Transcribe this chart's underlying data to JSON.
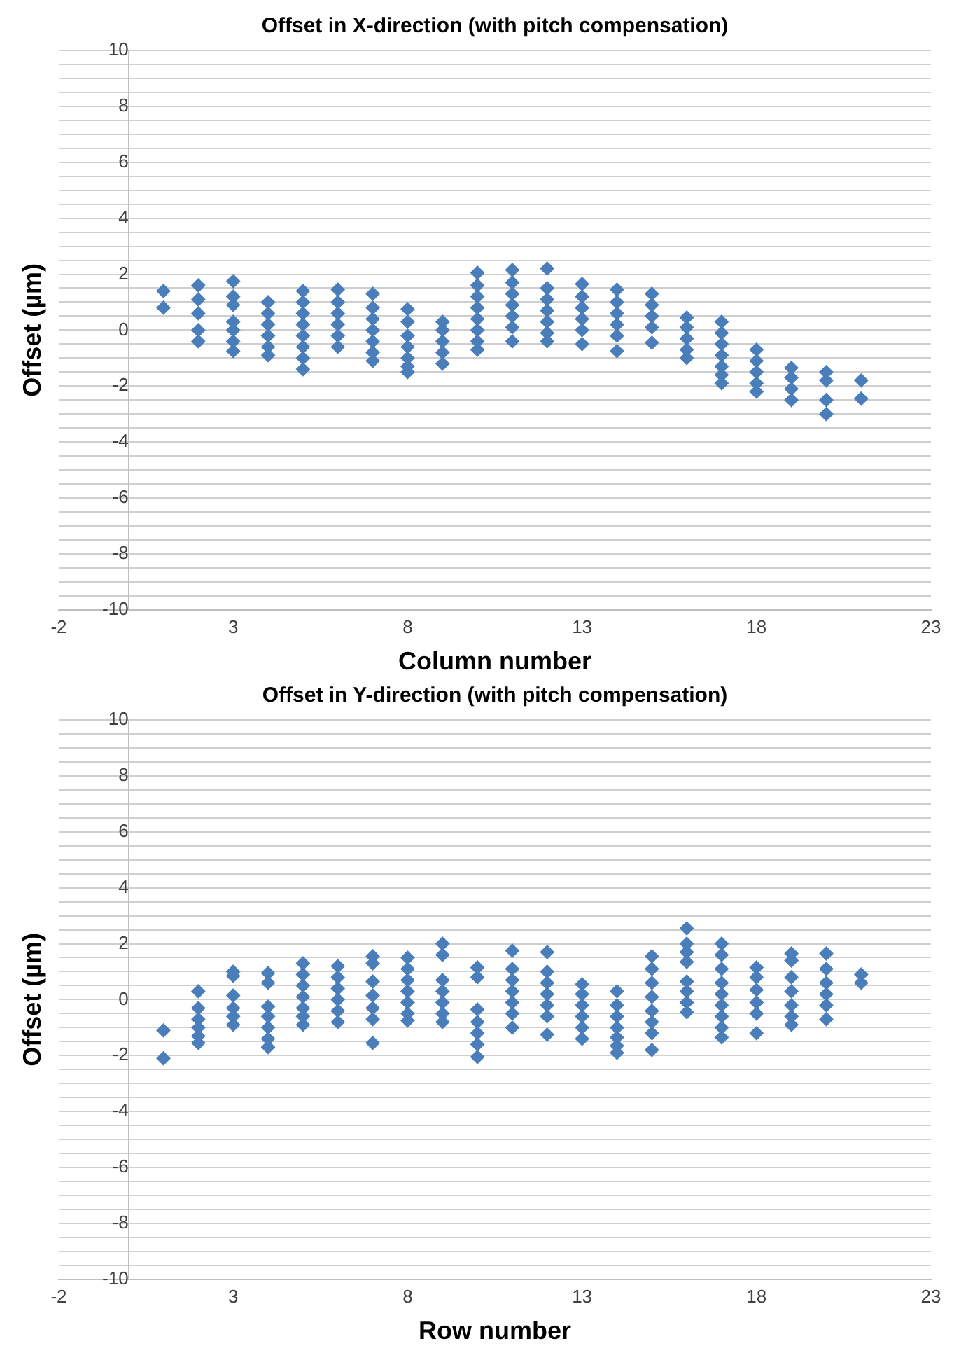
{
  "chart_data": [
    {
      "type": "scatter",
      "title": "Offset in X-direction (with pitch compensation)",
      "xlabel": "Column number",
      "ylabel": "Offset (µm)",
      "marker": "diamond",
      "grid": "y",
      "xlim": [
        -2,
        23
      ],
      "ylim": [
        -10,
        10
      ],
      "xticks": [
        -2,
        3,
        8,
        13,
        18,
        23
      ],
      "yticks": [
        -10,
        {
          "value": -9.5,
          "label": null
        },
        {
          "value": -9,
          "label": null
        },
        {
          "value": -8.5,
          "label": null
        },
        -8,
        {
          "value": -7.5,
          "label": null
        },
        {
          "value": -7,
          "label": null
        },
        {
          "value": -6.5,
          "label": null
        },
        -6,
        {
          "value": -5.5,
          "label": null
        },
        {
          "value": -5,
          "label": null
        },
        {
          "value": -4.5,
          "label": null
        },
        -4,
        {
          "value": -3.5,
          "label": null
        },
        {
          "value": -3,
          "label": null
        },
        {
          "value": -2.5,
          "label": null
        },
        -2,
        {
          "value": -1.5,
          "label": null
        },
        {
          "value": -1,
          "label": null
        },
        {
          "value": -0.5,
          "label": null
        },
        0,
        {
          "value": 0.5,
          "label": null
        },
        {
          "value": 1,
          "label": null
        },
        {
          "value": 1.5,
          "label": null
        },
        2,
        {
          "value": 2.5,
          "label": null
        },
        {
          "value": 3,
          "label": null
        },
        {
          "value": 3.5,
          "label": null
        },
        4,
        {
          "value": 4.5,
          "label": null
        },
        {
          "value": 5,
          "label": null
        },
        {
          "value": 5.5,
          "label": null
        },
        6,
        {
          "value": 6.5,
          "label": null
        },
        {
          "value": 7,
          "label": null
        },
        {
          "value": 7.5,
          "label": null
        },
        8,
        {
          "value": 8.5,
          "label": null
        },
        {
          "value": 9,
          "label": null
        },
        {
          "value": 9.5,
          "label": null
        },
        10
      ],
      "series": [
        {
          "color": "#4a7ebb",
          "x": [
            1,
            1,
            2,
            2,
            2,
            2,
            2,
            3,
            3,
            3,
            3,
            3,
            3,
            3,
            4,
            4,
            4,
            4,
            4,
            4,
            5,
            5,
            5,
            5,
            5,
            5,
            5,
            5,
            6,
            6,
            6,
            6,
            6,
            6,
            7,
            7,
            7,
            7,
            7,
            7,
            7,
            8,
            8,
            8,
            8,
            8,
            8,
            8,
            9,
            9,
            9,
            9,
            9,
            10,
            10,
            10,
            10,
            10,
            10,
            10,
            10,
            11,
            11,
            11,
            11,
            11,
            11,
            11,
            12,
            12,
            12,
            12,
            12,
            12,
            12,
            13,
            13,
            13,
            13,
            13,
            13,
            14,
            14,
            14,
            14,
            14,
            14,
            15,
            15,
            15,
            15,
            15,
            16,
            16,
            16,
            16,
            16,
            17,
            17,
            17,
            17,
            17,
            17,
            17,
            18,
            18,
            18,
            18,
            18,
            19,
            19,
            19,
            19,
            20,
            20,
            20,
            20,
            21,
            21
          ],
          "values": [
            1.4,
            0.8,
            1.6,
            1.1,
            0.6,
            0,
            -0.4,
            1.75,
            1.2,
            0.9,
            0.3,
            0,
            -0.4,
            -0.75,
            1,
            0.6,
            0.2,
            -0.2,
            -0.6,
            -0.9,
            1.4,
            1,
            0.6,
            0.2,
            -0.2,
            -0.6,
            -1,
            -1.4,
            1.45,
            1,
            0.6,
            0.2,
            -0.2,
            -0.6,
            1.3,
            0.8,
            0.4,
            0,
            -0.4,
            -0.8,
            -1.1,
            0.75,
            0.3,
            -0.2,
            -0.6,
            -1,
            -1.3,
            -1.5,
            0.3,
            0,
            -0.4,
            -0.8,
            -1.2,
            2.05,
            1.6,
            1.2,
            0.8,
            0.4,
            0,
            -0.4,
            -0.7,
            2.15,
            1.7,
            1.3,
            0.9,
            0.5,
            0.1,
            -0.4,
            2.2,
            1.5,
            1.1,
            0.7,
            0.3,
            -0.1,
            -0.4,
            1.65,
            1.2,
            0.8,
            0.4,
            0,
            -0.5,
            1.45,
            1,
            0.6,
            0.2,
            -0.2,
            -0.75,
            1.3,
            0.9,
            0.5,
            0.1,
            -0.45,
            0.45,
            0.1,
            -0.3,
            -0.7,
            -1,
            0.3,
            -0.1,
            -0.5,
            -0.9,
            -1.3,
            -1.6,
            -1.9,
            -0.7,
            -1.1,
            -1.5,
            -1.9,
            -2.2,
            -1.35,
            -1.7,
            -2.1,
            -2.5,
            -1.5,
            -1.8,
            -2.5,
            -3,
            -1.8,
            -2.45
          ]
        }
      ]
    },
    {
      "type": "scatter",
      "title": "Offset in Y-direction (with pitch compensation)",
      "xlabel": "Row number",
      "ylabel": "Offset (µm)",
      "marker": "diamond",
      "grid": "y",
      "xlim": [
        -2,
        23
      ],
      "ylim": [
        -10,
        10
      ],
      "xticks": [
        -2,
        3,
        8,
        13,
        18,
        23
      ],
      "yticks": [
        -10,
        {
          "value": -9.5,
          "label": null
        },
        {
          "value": -9,
          "label": null
        },
        {
          "value": -8.5,
          "label": null
        },
        -8,
        {
          "value": -7.5,
          "label": null
        },
        {
          "value": -7,
          "label": null
        },
        {
          "value": -6.5,
          "label": null
        },
        -6,
        {
          "value": -5.5,
          "label": null
        },
        {
          "value": -5,
          "label": null
        },
        {
          "value": -4.5,
          "label": null
        },
        -4,
        {
          "value": -3.5,
          "label": null
        },
        {
          "value": -3,
          "label": null
        },
        {
          "value": -2.5,
          "label": null
        },
        -2,
        {
          "value": -1.5,
          "label": null
        },
        {
          "value": -1,
          "label": null
        },
        {
          "value": -0.5,
          "label": null
        },
        0,
        {
          "value": 0.5,
          "label": null
        },
        {
          "value": 1,
          "label": null
        },
        {
          "value": 1.5,
          "label": null
        },
        2,
        {
          "value": 2.5,
          "label": null
        },
        {
          "value": 3,
          "label": null
        },
        {
          "value": 3.5,
          "label": null
        },
        4,
        {
          "value": 4.5,
          "label": null
        },
        {
          "value": 5,
          "label": null
        },
        {
          "value": 5.5,
          "label": null
        },
        6,
        {
          "value": 6.5,
          "label": null
        },
        {
          "value": 7,
          "label": null
        },
        {
          "value": 7.5,
          "label": null
        },
        8,
        {
          "value": 8.5,
          "label": null
        },
        {
          "value": 9,
          "label": null
        },
        {
          "value": 9.5,
          "label": null
        },
        10
      ],
      "series": [
        {
          "color": "#4a7ebb",
          "x": [
            1,
            1,
            2,
            2,
            2,
            2,
            2,
            2,
            3,
            3,
            3,
            3,
            3,
            3,
            4,
            4,
            4,
            4,
            4,
            4,
            4,
            5,
            5,
            5,
            5,
            5,
            5,
            5,
            6,
            6,
            6,
            6,
            6,
            6,
            7,
            7,
            7,
            7,
            7,
            7,
            7,
            8,
            8,
            8,
            8,
            8,
            8,
            8,
            9,
            9,
            9,
            9,
            9,
            9,
            9,
            10,
            10,
            10,
            10,
            10,
            10,
            10,
            11,
            11,
            11,
            11,
            11,
            11,
            11,
            12,
            12,
            12,
            12,
            12,
            12,
            12,
            13,
            13,
            13,
            13,
            13,
            13,
            14,
            14,
            14,
            14,
            14,
            14,
            14,
            15,
            15,
            15,
            15,
            15,
            15,
            15,
            15,
            16,
            16,
            16,
            16,
            16,
            16,
            16,
            16,
            17,
            17,
            17,
            17,
            17,
            17,
            17,
            17,
            17,
            18,
            18,
            18,
            18,
            18,
            18,
            19,
            19,
            19,
            19,
            19,
            19,
            19,
            20,
            20,
            20,
            20,
            20,
            20,
            21,
            21
          ],
          "values": [
            -1.1,
            -2.1,
            0.3,
            -0.3,
            -0.7,
            -1,
            -1.3,
            -1.55,
            1,
            0.85,
            0.15,
            -0.3,
            -0.6,
            -0.9,
            0.95,
            0.6,
            -0.25,
            -0.6,
            -1,
            -1.4,
            -1.7,
            1.3,
            0.9,
            0.5,
            0.1,
            -0.3,
            -0.6,
            -0.9,
            1.2,
            0.8,
            0.4,
            0,
            -0.4,
            -0.8,
            1.55,
            1.3,
            0.65,
            0.15,
            -0.3,
            -0.7,
            -1.55,
            1.5,
            1.1,
            0.7,
            0.3,
            -0.1,
            -0.5,
            -0.75,
            2,
            1.6,
            0.7,
            0.3,
            -0.1,
            -0.5,
            -0.8,
            1.15,
            0.8,
            -0.35,
            -0.8,
            -1.2,
            -1.6,
            -2.05,
            1.75,
            1.1,
            0.7,
            0.3,
            -0.1,
            -0.5,
            -1,
            1.7,
            1,
            0.6,
            0.2,
            -0.2,
            -0.6,
            -1.25,
            0.55,
            0.2,
            -0.2,
            -0.6,
            -1,
            -1.4,
            0.3,
            -0.2,
            -0.6,
            -1,
            -1.35,
            -1.65,
            -1.9,
            1.55,
            1.1,
            0.6,
            0.1,
            -0.4,
            -0.8,
            -1.2,
            -1.8,
            2.55,
            2,
            1.7,
            1.35,
            0.65,
            0.3,
            -0.1,
            -0.45,
            2,
            1.6,
            1.1,
            0.6,
            0.2,
            -0.2,
            -0.6,
            -1,
            -1.35,
            1.15,
            0.8,
            0.35,
            -0.1,
            -0.5,
            -1.2,
            1.65,
            1.4,
            0.8,
            0.3,
            -0.2,
            -0.6,
            -0.9,
            1.65,
            1.1,
            0.6,
            0.2,
            -0.2,
            -0.7,
            0.9,
            0.6
          ]
        }
      ]
    }
  ]
}
